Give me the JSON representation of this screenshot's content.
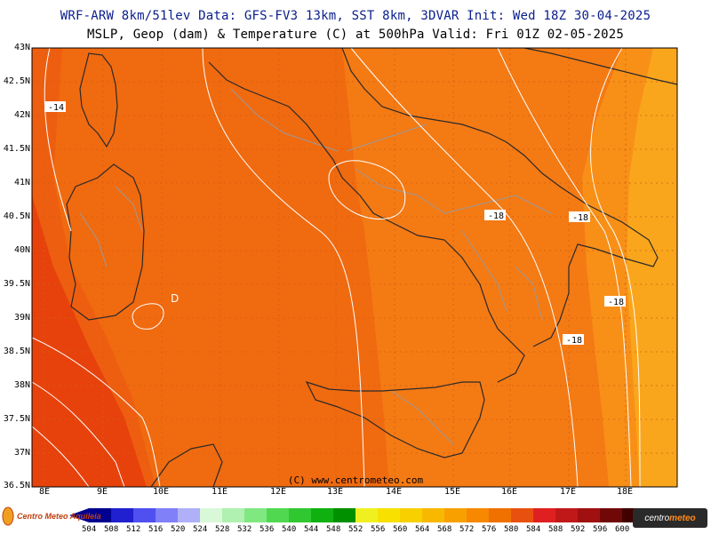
{
  "header": {
    "line1": "WRF-ARW 8km/51lev  Data: GFS-FV3 13km, SST 8km, 3DVAR  Init: Wed 18Z 30-04-2025",
    "line2": "MSLP, Geop (dam) & Temperature (C) at 500hPa  Valid: Fri 01Z 02-05-2025"
  },
  "axes": {
    "lat_labels": [
      "43N",
      "42.5N",
      "42N",
      "41.5N",
      "41N",
      "40.5N",
      "40N",
      "39.5N",
      "39N",
      "38.5N",
      "38N",
      "37.5N",
      "37N",
      "36.5N"
    ],
    "lon_labels": [
      "8E",
      "9E",
      "10E",
      "11E",
      "12E",
      "13E",
      "14E",
      "15E",
      "16E",
      "17E",
      "18E"
    ]
  },
  "contour_labels": [
    "-14",
    "-18",
    "-18",
    "-18",
    "-18"
  ],
  "low_marker": "D",
  "watermark": "(C) www.centrometeo.com",
  "colorbar": {
    "values": [
      "504",
      "508",
      "512",
      "516",
      "520",
      "524",
      "528",
      "532",
      "536",
      "540",
      "544",
      "548",
      "552",
      "556",
      "560",
      "564",
      "568",
      "572",
      "576",
      "580",
      "584",
      "588",
      "592",
      "596",
      "600"
    ],
    "colors": [
      "#000090",
      "#2020d0",
      "#5050f0",
      "#8080f8",
      "#b0b0f8",
      "#d8f8d8",
      "#b0f0b0",
      "#80e880",
      "#50d850",
      "#30c830",
      "#10b010",
      "#009000",
      "#f0f020",
      "#f8e000",
      "#f8d000",
      "#f8b800",
      "#f8a000",
      "#f88800",
      "#f07000",
      "#e85010",
      "#e02020",
      "#c01818",
      "#a01010",
      "#700808",
      "#400000"
    ]
  },
  "logos": {
    "left": "Centro Meteo Aquileia",
    "right_a": "centro",
    "right_b": "meteo"
  },
  "map_colors": {
    "band_578": "#f06a10",
    "band_574": "#f47a14",
    "band_570": "#f89018",
    "band_566": "#faa61c",
    "band_582": "#e8420c",
    "border": "#2a2a2a",
    "region_line": "#9a9a9a"
  }
}
